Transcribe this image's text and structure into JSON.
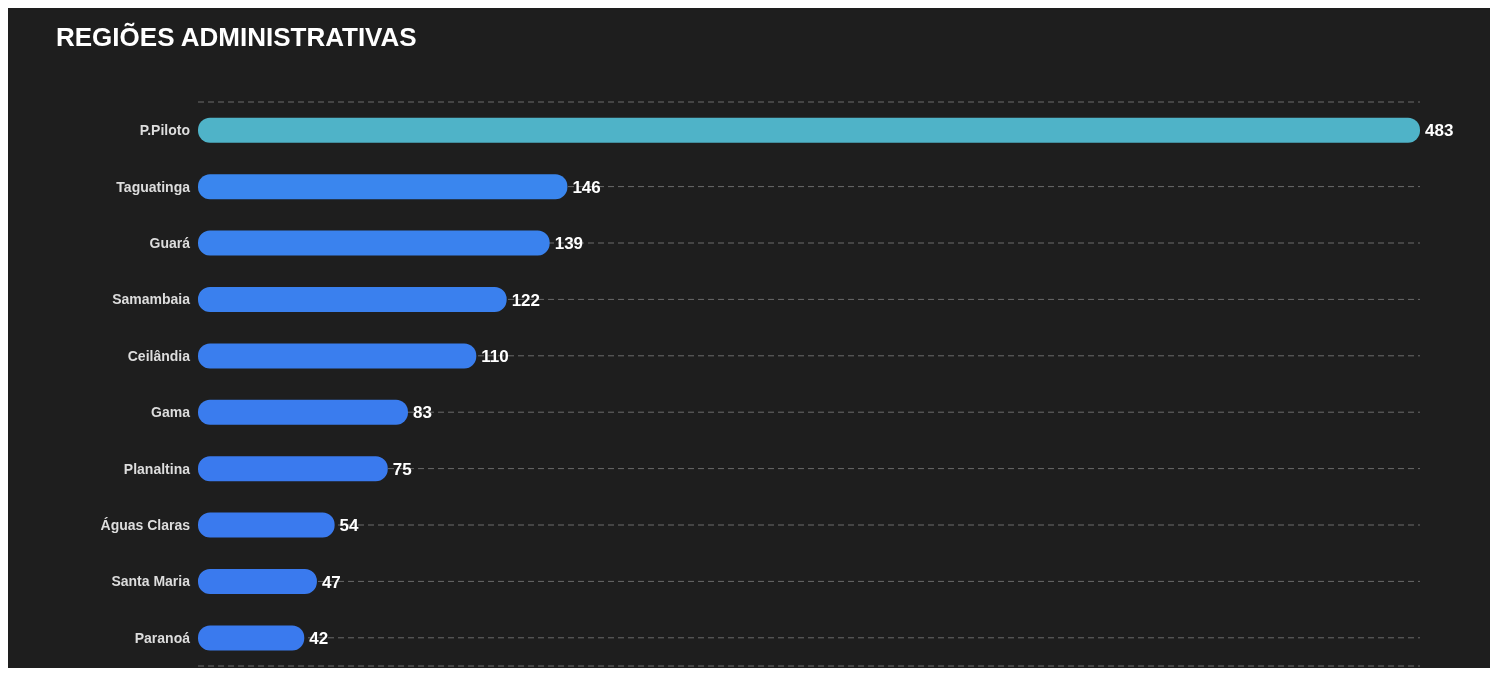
{
  "chart_data": {
    "type": "bar",
    "orientation": "horizontal",
    "title": "REGIÕES  ADMINISTRATIVAS",
    "categories": [
      "P.Piloto",
      "Taguatinga",
      "Guará",
      "Samambaia",
      "Ceilândia",
      "Gama",
      "Planaltina",
      "Águas Claras",
      "Santa Maria",
      "Paranoá"
    ],
    "values": [
      483,
      146,
      139,
      122,
      110,
      83,
      75,
      54,
      47,
      42
    ],
    "colors": [
      "#4fb3c8",
      "#3a86ee",
      "#3a82ee",
      "#3a80ee",
      "#3a7eee",
      "#3a7cee",
      "#3a7aee",
      "#3a7aee",
      "#3a7aee",
      "#3a7aee"
    ],
    "tick_labels": "y",
    "grid": "y",
    "data_labels": true
  }
}
